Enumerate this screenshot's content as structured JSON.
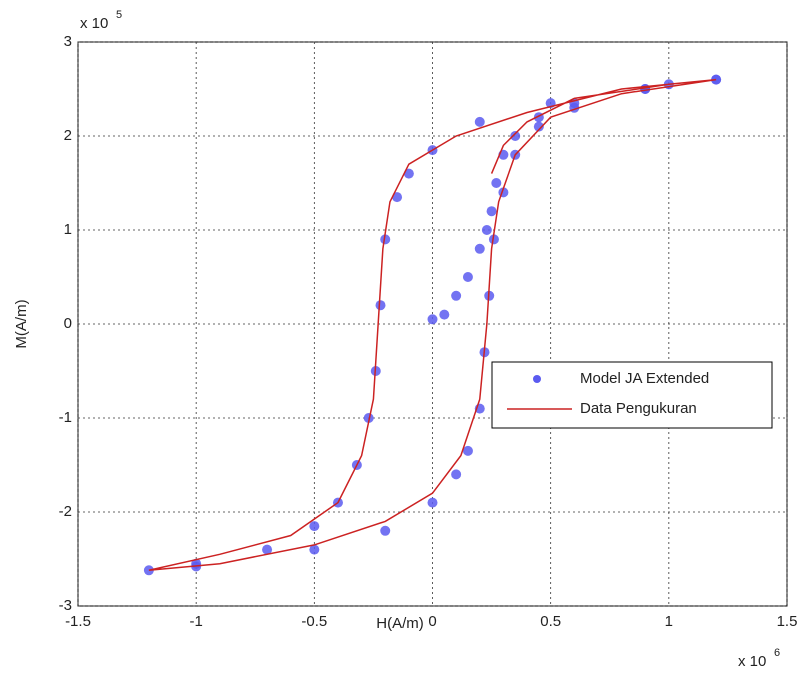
{
  "chart_data": {
    "type": "scatter-line",
    "x_label": "H(A/m)",
    "y_label": "M(A/m)",
    "x_scale_base": "x 10",
    "x_scale_exponent": "6",
    "y_scale_base": "x 10",
    "y_scale_exponent": "5",
    "xlim": [
      -1.5,
      1.5
    ],
    "xticks": [
      -1.5,
      -1,
      -0.5,
      0,
      0.5,
      1,
      1.5
    ],
    "ylim": [
      -3,
      3
    ],
    "yticks": [
      -3,
      -2,
      -1,
      0,
      1,
      2,
      3
    ],
    "grid": true,
    "legend": "right",
    "series": [
      {
        "name": "Model JA Extended",
        "kind": "scatter",
        "color": "#5b5bf0",
        "x": [
          0,
          0.05,
          0.1,
          0.15,
          0.2,
          0.23,
          0.25,
          0.27,
          0.3,
          0.35,
          0.45,
          0.6,
          0.9,
          1.2,
          1.0,
          0.5,
          0.2,
          0,
          -0.1,
          -0.15,
          -0.2,
          -0.22,
          -0.24,
          -0.27,
          -0.32,
          -0.4,
          -0.5,
          -0.7,
          -1.0,
          -1.2,
          -1.0,
          -0.5,
          -0.2,
          0,
          0.1,
          0.15,
          0.2,
          0.22,
          0.24,
          0.26,
          0.3,
          0.35,
          0.45,
          0.6,
          0.9,
          1.2
        ],
        "values": [
          0.05,
          0.1,
          0.3,
          0.5,
          0.8,
          1.0,
          1.2,
          1.5,
          1.8,
          2.0,
          2.2,
          2.35,
          2.5,
          2.6,
          2.55,
          2.35,
          2.15,
          1.85,
          1.6,
          1.35,
          0.9,
          0.2,
          -0.5,
          -1.0,
          -1.5,
          -1.9,
          -2.15,
          -2.4,
          -2.55,
          -2.62,
          -2.58,
          -2.4,
          -2.2,
          -1.9,
          -1.6,
          -1.35,
          -0.9,
          -0.3,
          0.3,
          0.9,
          1.4,
          1.8,
          2.1,
          2.3,
          2.5,
          2.6
        ]
      },
      {
        "name": "Data Pengukuran",
        "kind": "line",
        "color": "#cc2222",
        "x": [
          0.25,
          0.3,
          0.4,
          0.6,
          1.0,
          1.2,
          0.8,
          0.4,
          0.1,
          -0.1,
          -0.18,
          -0.21,
          -0.23,
          -0.25,
          -0.3,
          -0.4,
          -0.6,
          -0.9,
          -1.2,
          -0.9,
          -0.5,
          -0.2,
          0,
          0.12,
          0.2,
          0.23,
          0.25,
          0.28,
          0.35,
          0.5,
          0.8,
          1.2
        ],
        "values": [
          1.6,
          1.9,
          2.15,
          2.4,
          2.55,
          2.6,
          2.5,
          2.25,
          2.0,
          1.7,
          1.3,
          0.8,
          0,
          -0.8,
          -1.4,
          -1.9,
          -2.25,
          -2.45,
          -2.62,
          -2.55,
          -2.35,
          -2.1,
          -1.8,
          -1.4,
          -0.8,
          0,
          0.8,
          1.3,
          1.8,
          2.2,
          2.45,
          2.6
        ]
      }
    ]
  }
}
